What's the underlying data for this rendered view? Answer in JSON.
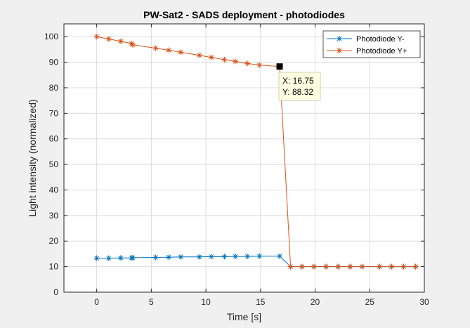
{
  "chart_data": {
    "type": "line",
    "title": "PW-Sat2 - SADS deployment - photodiodes",
    "xlabel": "Time [s]",
    "ylabel": "Light intensity (normalized)",
    "xlim": [
      -3,
      30
    ],
    "ylim": [
      0,
      105
    ],
    "xticks": [
      0,
      5,
      10,
      15,
      20,
      25,
      30
    ],
    "yticks": [
      0,
      10,
      20,
      30,
      40,
      50,
      60,
      70,
      80,
      90,
      100
    ],
    "grid": true,
    "legend_position": "top-right",
    "series": [
      {
        "name": "Photodiode Y-",
        "color": "#0072bd",
        "marker": "asterisk",
        "x": [
          0,
          1.1,
          2.2,
          3.2,
          3.3,
          5.4,
          6.6,
          7.7,
          9.4,
          10.5,
          11.7,
          12.7,
          13.8,
          14.9,
          16.75,
          17.75,
          18.8,
          19.9,
          21.0,
          22.1,
          23.2,
          24.3,
          25.9,
          27.0,
          28.1,
          29.2
        ],
        "y": [
          13.3,
          13.3,
          13.4,
          13.4,
          13.5,
          13.6,
          13.7,
          13.8,
          13.8,
          13.9,
          13.9,
          14.0,
          14.0,
          14.1,
          14.1,
          10.0,
          10.0,
          10.0,
          10.0,
          10.0,
          10.0,
          10.0,
          10.0,
          10.0,
          10.0,
          10.0
        ]
      },
      {
        "name": "Photodiode Y+",
        "color": "#d95319",
        "marker": "asterisk",
        "x": [
          0,
          1.1,
          2.2,
          3.2,
          3.3,
          5.4,
          6.6,
          7.7,
          9.4,
          10.5,
          11.7,
          12.7,
          13.8,
          14.9,
          16.75,
          17.75,
          18.8,
          19.9,
          21.0,
          22.1,
          23.2,
          24.3,
          25.9,
          27.0,
          28.1,
          29.2
        ],
        "y": [
          100.0,
          99.1,
          98.2,
          97.3,
          96.8,
          95.5,
          94.7,
          93.9,
          92.7,
          91.9,
          91.0,
          90.3,
          89.5,
          88.9,
          88.32,
          10.0,
          10.0,
          10.0,
          10.0,
          10.0,
          10.0,
          10.0,
          10.0,
          10.0,
          10.0,
          10.0
        ]
      }
    ],
    "datatip": {
      "series": 1,
      "point_index": 14,
      "x_text": "X: 16.75",
      "y_text": "Y: 88.32"
    }
  }
}
